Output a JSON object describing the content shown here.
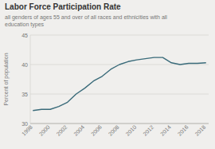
{
  "chart_data": {
    "type": "line",
    "title": "Labor Force Participation Rate",
    "subtitle": "all genders of ages 55 and over of all races and ethnicities with all\neducation types",
    "y_label": "Percent of population",
    "x": [
      1998,
      1999,
      2000,
      2001,
      2002,
      2003,
      2004,
      2005,
      2006,
      2007,
      2008,
      2009,
      2010,
      2011,
      2012,
      2013,
      2014,
      2015,
      2016,
      2017,
      2018
    ],
    "values": [
      32.2,
      32.4,
      32.4,
      32.9,
      33.6,
      35.0,
      36.0,
      37.2,
      38.0,
      39.2,
      40.0,
      40.5,
      40.8,
      41.0,
      41.2,
      41.2,
      40.3,
      40.0,
      40.2,
      40.2,
      40.3
    ],
    "xlim": [
      1997.7,
      2018.3
    ],
    "xticks": [
      1998,
      2000,
      2002,
      2004,
      2006,
      2008,
      2010,
      2012,
      2014,
      2016,
      2018
    ],
    "ylim": [
      30,
      45
    ],
    "yticks": [
      30,
      35,
      40,
      45
    ],
    "color": "#3a6b7a",
    "grid": true
  }
}
